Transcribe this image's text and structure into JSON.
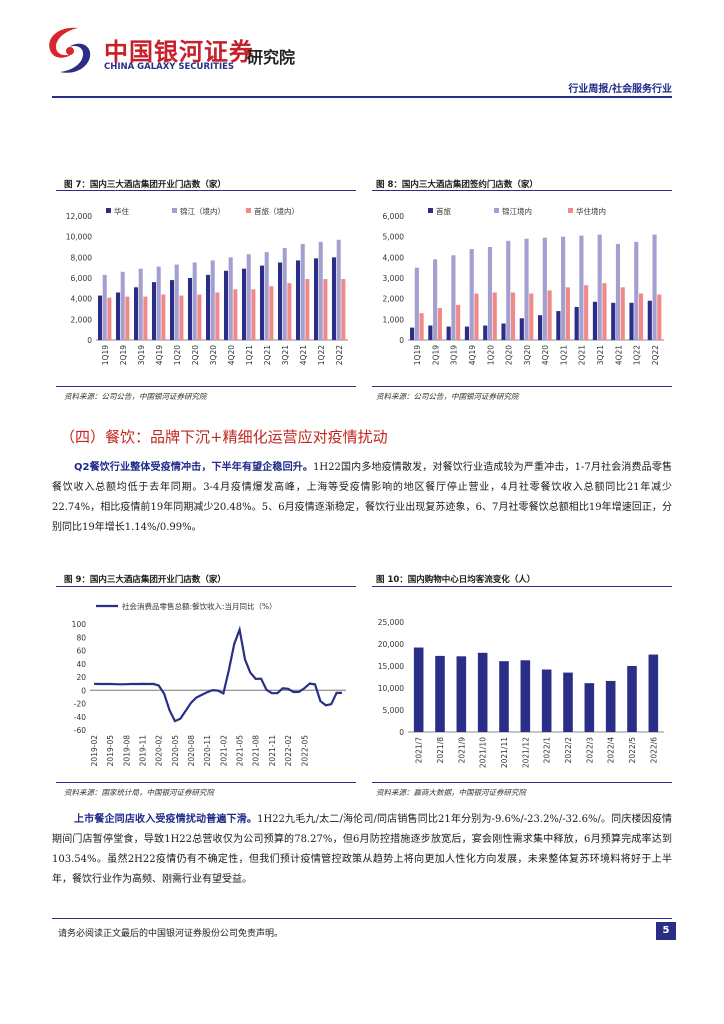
{
  "header": {
    "company_cn": "中国银河证券",
    "company_en": "CHINA GALAXY SECURITIES",
    "institute": "研究院",
    "report_type": "行业周报/社会服务行业"
  },
  "section_heading": "（四）餐饮：品牌下沉+精细化运营应对疫情扰动",
  "paragraph1": {
    "lead": "Q2餐饮行业整体受疫情冲击，下半年有望企稳回升。",
    "body": "1H22国内多地疫情散发，对餐饮行业造成较为严重冲击，1-7月社会消费品零售餐饮收入总额均低于去年同期。3-4月疫情爆发高峰，上海等受疫情影响的地区餐厅停止营业，4月社零餐饮收入总额同比21年减少22.74%，相比疫情前19年同期减少20.48%。5、6月疫情逐渐稳定，餐饮行业出现复苏迹象，6、7月社零餐饮总额相比19年增速回正，分别同比19年增长1.14%/0.99%。"
  },
  "paragraph2": {
    "lead": "上市餐企同店收入受疫情扰动普遍下滑。",
    "body": "1H22九毛九/太二/海伦司/同店销售同比21年分别为-9.6%/-23.2%/-32.6%/。同庆楼因疫情期间门店暂停堂食，导致1H22总营收仅为公司预算的78.27%，但6月防控措施逐步放宽后，宴会刚性需求集中释放，6月预算完成率达到103.54%。虽然2H22疫情仍有不确定性，但我们预计疫情管控政策从趋势上将向更加人性化方向发展，未来整体复苏环境料将好于上半年，餐饮行业作为高频、刚需行业有望受益。"
  },
  "footer": {
    "disclaimer": "请务必阅读正文最后的中国银河证券股份公司免责声明。",
    "page": "5"
  },
  "figures": {
    "fig7": {
      "title": "图 7：国内三大酒店集团开业门店数（家）",
      "source": "资料来源：公司公告，中国银河证券研究院"
    },
    "fig8": {
      "title": "图 8：国内三大酒店集团签约门店数（家）",
      "source": "资料来源：公司公告，中国银河证券研究院"
    },
    "fig9": {
      "title": "图 9：国内三大酒店集团开业门店数（家）",
      "source": "资料来源：国家统计局，中国银河证券研究院"
    },
    "fig10": {
      "title": "图 10：国内购物中心日均客流变化（人）",
      "source": "资料来源：赢商大数据，中国银河证券研究院"
    }
  },
  "colors": {
    "navy": "#2b2e86",
    "lavender": "#a39fd0",
    "pink": "#f08a8a",
    "red": "#c0261e"
  },
  "chart_data": [
    {
      "id": "fig7",
      "type": "bar",
      "categories": [
        "1Q19",
        "2Q19",
        "3Q19",
        "4Q19",
        "1Q20",
        "2Q20",
        "3Q20",
        "4Q20",
        "1Q21",
        "2Q21",
        "3Q21",
        "4Q21",
        "1Q22",
        "2Q22"
      ],
      "series": [
        {
          "name": "华住",
          "values": [
            4300,
            4600,
            5100,
            5600,
            5800,
            6000,
            6300,
            6700,
            6900,
            7200,
            7500,
            7700,
            7900,
            8000
          ]
        },
        {
          "name": "锦江（境内）",
          "values": [
            6300,
            6600,
            6900,
            7100,
            7300,
            7500,
            7700,
            8000,
            8300,
            8500,
            8900,
            9300,
            9500,
            9700
          ]
        },
        {
          "name": "首旅（境内）",
          "values": [
            4100,
            4200,
            4200,
            4400,
            4300,
            4400,
            4600,
            4900,
            4900,
            5200,
            5500,
            5900,
            5900,
            5900
          ]
        }
      ],
      "ylim": [
        0,
        12000
      ],
      "yticks": [
        "0",
        "2,000",
        "4,000",
        "6,000",
        "8,000",
        "10,000",
        "12,000"
      ],
      "legend": "top"
    },
    {
      "id": "fig8",
      "type": "bar",
      "categories": [
        "1Q19",
        "2Q19",
        "3Q19",
        "4Q19",
        "1Q20",
        "2Q20",
        "3Q20",
        "4Q20",
        "1Q21",
        "2Q21",
        "3Q21",
        "4Q21",
        "1Q22",
        "2Q22"
      ],
      "series": [
        {
          "name": "首旅",
          "values": [
            600,
            700,
            650,
            650,
            700,
            800,
            1050,
            1200,
            1400,
            1600,
            1850,
            1800,
            1800,
            1900
          ]
        },
        {
          "name": "锦江境内",
          "values": [
            3500,
            3900,
            4100,
            4400,
            4500,
            4800,
            4900,
            4950,
            5000,
            5050,
            5100,
            4650,
            4750,
            5100
          ]
        },
        {
          "name": "华住境内",
          "values": [
            1300,
            1550,
            1700,
            2250,
            2300,
            2300,
            2250,
            2400,
            2550,
            2650,
            2750,
            2550,
            2250,
            2200
          ]
        }
      ],
      "ylim": [
        0,
        6000
      ],
      "yticks": [
        "0",
        "1,000",
        "2,000",
        "3,000",
        "4,000",
        "5,000",
        "6,000"
      ],
      "legend": "top"
    },
    {
      "id": "fig9",
      "type": "line",
      "series_name": "社会消费品零售总额:餐饮收入:当月同比（%）",
      "xticks": [
        "2019-02",
        "2019-05",
        "2019-08",
        "2019-11",
        "2020-02",
        "2020-05",
        "2020-08",
        "2020-11",
        "2021-02",
        "2021-05",
        "2021-08",
        "2021-11",
        "2022-02",
        "2022-05"
      ],
      "values": [
        9.7,
        9.4,
        9.5,
        9.4,
        9.1,
        9.0,
        9.1,
        9.4,
        9.5,
        9.6,
        9.5,
        9.6,
        7.2,
        -5,
        -30,
        -46.6,
        -43,
        -31,
        -18.9,
        -11,
        -7,
        -2.9,
        0.2,
        -0.6,
        -4.7,
        30,
        69.6,
        91.6,
        46.4,
        26.6,
        17.1,
        17.5,
        0.7,
        -4.5,
        -4.5,
        3,
        2.2,
        -2.7,
        -2.5,
        3,
        10,
        8.9,
        -16.4,
        -22.7,
        -21.1,
        -4.0,
        -4.0
      ],
      "ylim": [
        -60,
        100
      ],
      "yticks": [
        "-60",
        "-40",
        "-20",
        "0",
        "20",
        "40",
        "60",
        "80",
        "100"
      ],
      "legend": "top-left"
    },
    {
      "id": "fig10",
      "type": "bar",
      "categories": [
        "2021/7",
        "2021/8",
        "2021/9",
        "2021/10",
        "2021/11",
        "2021/12",
        "2022/1",
        "2022/2",
        "2022/3",
        "2022/4",
        "2022/5",
        "2022/6"
      ],
      "values": [
        19200,
        17300,
        17200,
        18000,
        16100,
        16300,
        14200,
        13500,
        11100,
        11600,
        15000,
        17600
      ],
      "ylim": [
        0,
        25000
      ],
      "yticks": [
        "0",
        "5,000",
        "10,000",
        "15,000",
        "20,000",
        "25,000"
      ]
    }
  ]
}
